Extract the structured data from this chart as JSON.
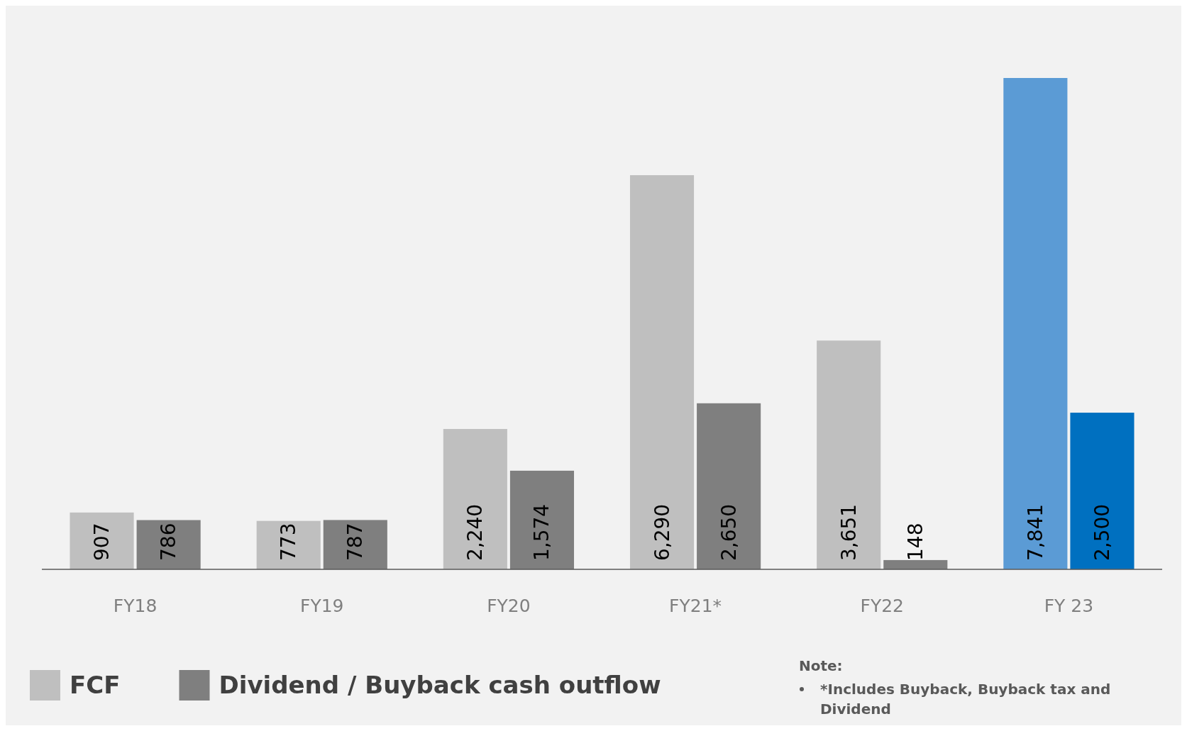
{
  "chart_data": {
    "type": "bar",
    "categories": [
      "FY18",
      "FY19",
      "FY20",
      "FY21*",
      "FY22",
      "FY 23"
    ],
    "series": [
      {
        "name": "FCF",
        "color": "#bfbfbf",
        "colors": [
          "#bfbfbf",
          "#bfbfbf",
          "#bfbfbf",
          "#bfbfbf",
          "#bfbfbf",
          "#5b9bd5"
        ],
        "values": [
          907,
          773,
          2240,
          6290,
          3651,
          7841
        ],
        "value_labels": [
          "907",
          "773",
          "2,240",
          "6,290",
          "3,651",
          "7,841"
        ]
      },
      {
        "name": "Dividend / Buyback cash outflow",
        "color": "#7f7f7f",
        "colors": [
          "#7f7f7f",
          "#7f7f7f",
          "#7f7f7f",
          "#7f7f7f",
          "#7f7f7f",
          "#0070c0"
        ],
        "values": [
          786,
          787,
          1574,
          2650,
          148,
          2500
        ],
        "value_labels": [
          "786",
          "787",
          "1,574",
          "2,650",
          "148",
          "2,500"
        ]
      }
    ],
    "tick_labels": "x",
    "legend": "bottom left",
    "annotations": [
      "Note:",
      "*Includes Buyback, Buyback tax and Dividend"
    ]
  }
}
